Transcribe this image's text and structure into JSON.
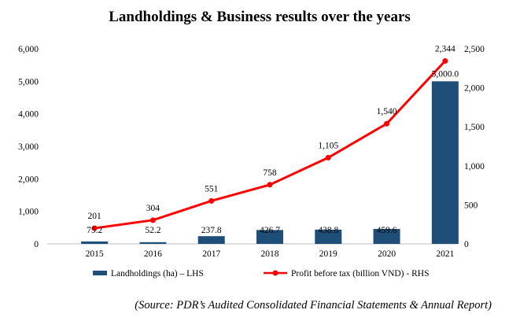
{
  "chart_data": {
    "type": "bar+line",
    "title": "Landholdings & Business results over the years",
    "categories": [
      "2015",
      "2016",
      "2017",
      "2018",
      "2019",
      "2020",
      "2021"
    ],
    "series": [
      {
        "name": "Landholdings (ha) – LHS",
        "type": "bar",
        "axis": "left",
        "color": "#1f4e79",
        "values": [
          75.2,
          52.2,
          237.8,
          426.7,
          438.8,
          459.6,
          5000.0
        ],
        "labels": [
          "75.2",
          "52.2",
          "237.8",
          "426.7",
          "438.8",
          "459.6",
          "5,000.0"
        ]
      },
      {
        "name": "Profit before tax (billion VND) - RHS",
        "type": "line",
        "axis": "right",
        "color": "#ff0000",
        "values": [
          201,
          304,
          551,
          758,
          1105,
          1540,
          2344
        ],
        "labels": [
          "201",
          "304",
          "551",
          "758",
          "1,105",
          "1,540",
          "2,344"
        ]
      }
    ],
    "y_left": {
      "ylim": [
        0,
        6000
      ],
      "ticks": [
        "0",
        "1,000",
        "2,000",
        "3,000",
        "4,000",
        "5,000",
        "6,000"
      ]
    },
    "y_right": {
      "ylim": [
        0,
        2500
      ],
      "ticks": [
        "0",
        "500",
        "1,000",
        "1,500",
        "2,000",
        "2,500"
      ]
    },
    "grid": false,
    "legend_position": "bottom"
  },
  "source": "(Source: PDR’s Audited Consolidated Financial Statements & Annual Report)"
}
